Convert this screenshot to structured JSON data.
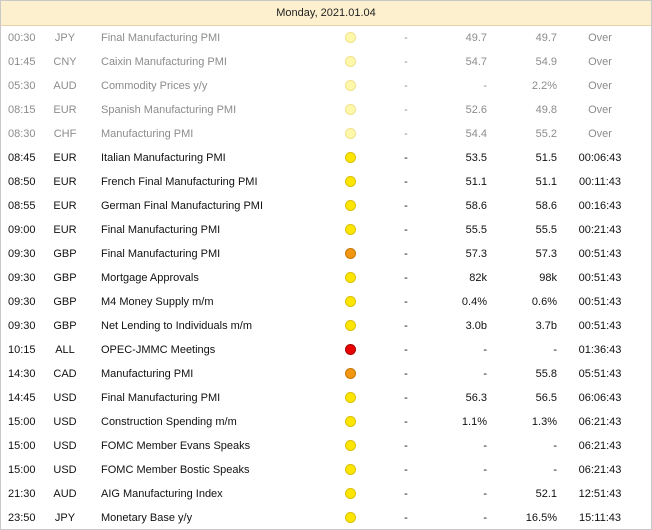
{
  "calendar": {
    "date_label": "Monday, 2021.01.04",
    "colors": {
      "header_bg": "#fdf0cf",
      "impact_low": "#ffe600",
      "impact_medium": "#f19712",
      "impact_high": "#ea0000",
      "past_text": "#8c8c8c"
    },
    "events": [
      {
        "time": "00:30",
        "currency": "JPY",
        "event": "Final Manufacturing PMI",
        "impact": "low",
        "actual": "-",
        "forecast": "49.7",
        "previous": "49.7",
        "time_left": "Over",
        "past": true
      },
      {
        "time": "01:45",
        "currency": "CNY",
        "event": "Caixin Manufacturing PMI",
        "impact": "low",
        "actual": "-",
        "forecast": "54.7",
        "previous": "54.9",
        "time_left": "Over",
        "past": true
      },
      {
        "time": "05:30",
        "currency": "AUD",
        "event": "Commodity Prices y/y",
        "impact": "low",
        "actual": "-",
        "forecast": "-",
        "previous": "2.2%",
        "time_left": "Over",
        "past": true
      },
      {
        "time": "08:15",
        "currency": "EUR",
        "event": "Spanish Manufacturing PMI",
        "impact": "low",
        "actual": "-",
        "forecast": "52.6",
        "previous": "49.8",
        "time_left": "Over",
        "past": true
      },
      {
        "time": "08:30",
        "currency": "CHF",
        "event": "Manufacturing PMI",
        "impact": "low",
        "actual": "-",
        "forecast": "54.4",
        "previous": "55.2",
        "time_left": "Over",
        "past": true
      },
      {
        "time": "08:45",
        "currency": "EUR",
        "event": "Italian Manufacturing PMI",
        "impact": "low",
        "actual": "-",
        "forecast": "53.5",
        "previous": "51.5",
        "time_left": "00:06:43",
        "past": false
      },
      {
        "time": "08:50",
        "currency": "EUR",
        "event": "French Final Manufacturing PMI",
        "impact": "low",
        "actual": "-",
        "forecast": "51.1",
        "previous": "51.1",
        "time_left": "00:11:43",
        "past": false
      },
      {
        "time": "08:55",
        "currency": "EUR",
        "event": "German Final Manufacturing PMI",
        "impact": "low",
        "actual": "-",
        "forecast": "58.6",
        "previous": "58.6",
        "time_left": "00:16:43",
        "past": false
      },
      {
        "time": "09:00",
        "currency": "EUR",
        "event": "Final Manufacturing PMI",
        "impact": "low",
        "actual": "-",
        "forecast": "55.5",
        "previous": "55.5",
        "time_left": "00:21:43",
        "past": false
      },
      {
        "time": "09:30",
        "currency": "GBP",
        "event": "Final Manufacturing PMI",
        "impact": "medium",
        "actual": "-",
        "forecast": "57.3",
        "previous": "57.3",
        "time_left": "00:51:43",
        "past": false
      },
      {
        "time": "09:30",
        "currency": "GBP",
        "event": "Mortgage Approvals",
        "impact": "low",
        "actual": "-",
        "forecast": "82k",
        "previous": "98k",
        "time_left": "00:51:43",
        "past": false
      },
      {
        "time": "09:30",
        "currency": "GBP",
        "event": "M4 Money Supply m/m",
        "impact": "low",
        "actual": "-",
        "forecast": "0.4%",
        "previous": "0.6%",
        "time_left": "00:51:43",
        "past": false
      },
      {
        "time": "09:30",
        "currency": "GBP",
        "event": "Net Lending to Individuals m/m",
        "impact": "low",
        "actual": "-",
        "forecast": "3.0b",
        "previous": "3.7b",
        "time_left": "00:51:43",
        "past": false
      },
      {
        "time": "10:15",
        "currency": "ALL",
        "event": "OPEC-JMMC Meetings",
        "impact": "high",
        "actual": "-",
        "forecast": "-",
        "previous": "-",
        "time_left": "01:36:43",
        "past": false
      },
      {
        "time": "14:30",
        "currency": "CAD",
        "event": "Manufacturing PMI",
        "impact": "medium",
        "actual": "-",
        "forecast": "-",
        "previous": "55.8",
        "time_left": "05:51:43",
        "past": false
      },
      {
        "time": "14:45",
        "currency": "USD",
        "event": "Final Manufacturing PMI",
        "impact": "low",
        "actual": "-",
        "forecast": "56.3",
        "previous": "56.5",
        "time_left": "06:06:43",
        "past": false
      },
      {
        "time": "15:00",
        "currency": "USD",
        "event": "Construction Spending m/m",
        "impact": "low",
        "actual": "-",
        "forecast": "1.1%",
        "previous": "1.3%",
        "time_left": "06:21:43",
        "past": false
      },
      {
        "time": "15:00",
        "currency": "USD",
        "event": "FOMC Member Evans Speaks",
        "impact": "low",
        "actual": "-",
        "forecast": "-",
        "previous": "-",
        "time_left": "06:21:43",
        "past": false
      },
      {
        "time": "15:00",
        "currency": "USD",
        "event": "FOMC Member Bostic Speaks",
        "impact": "low",
        "actual": "-",
        "forecast": "-",
        "previous": "-",
        "time_left": "06:21:43",
        "past": false
      },
      {
        "time": "21:30",
        "currency": "AUD",
        "event": "AIG Manufacturing Index",
        "impact": "low",
        "actual": "-",
        "forecast": "-",
        "previous": "52.1",
        "time_left": "12:51:43",
        "past": false
      },
      {
        "time": "23:50",
        "currency": "JPY",
        "event": "Monetary Base y/y",
        "impact": "low",
        "actual": "-",
        "forecast": "-",
        "previous": "16.5%",
        "time_left": "15:11:43",
        "past": false
      }
    ]
  }
}
